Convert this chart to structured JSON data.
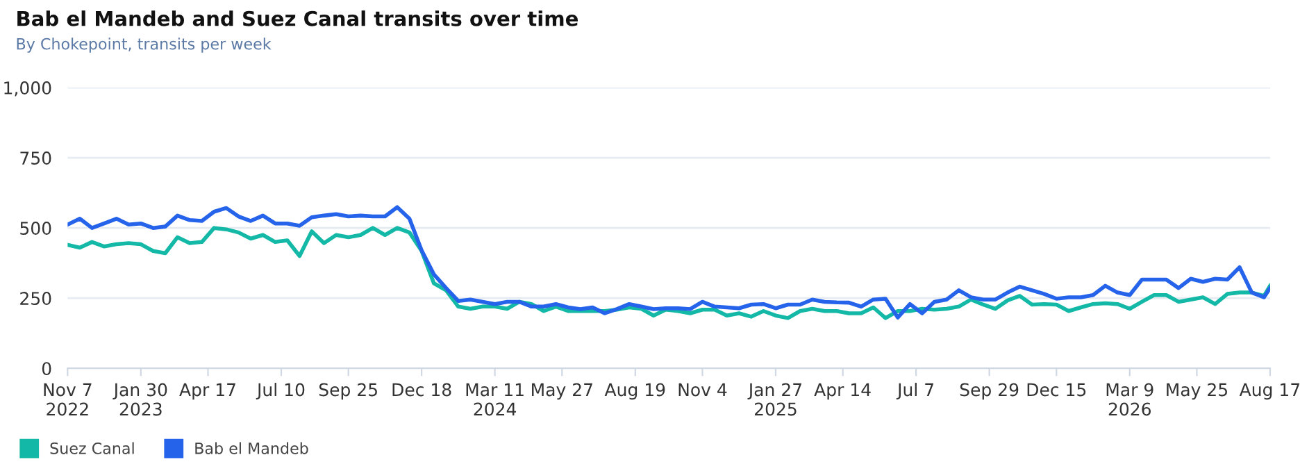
{
  "chart_data": {
    "type": "line",
    "title": "Bab el Mandeb and Suez Canal transits over time",
    "subtitle": "By Chokepoint, transits per week",
    "x": [
      "2022-11-07",
      "2022-11-21",
      "2022-12-05",
      "2022-12-19",
      "2023-01-02",
      "2023-01-16",
      "2023-01-30",
      "2023-02-13",
      "2023-02-27",
      "2023-03-13",
      "2023-03-27",
      "2023-04-10",
      "2023-04-24",
      "2023-05-08",
      "2023-05-22",
      "2023-06-05",
      "2023-06-19",
      "2023-07-03",
      "2023-07-17",
      "2023-07-31",
      "2023-08-14",
      "2023-08-28",
      "2023-09-11",
      "2023-09-25",
      "2023-10-09",
      "2023-10-23",
      "2023-11-06",
      "2023-11-20",
      "2023-12-04",
      "2023-12-18",
      "2024-01-01",
      "2024-01-15",
      "2024-01-29",
      "2024-02-12",
      "2024-02-26",
      "2024-03-11",
      "2024-03-25",
      "2024-04-08",
      "2024-04-22",
      "2024-05-06",
      "2024-05-20",
      "2024-06-03",
      "2024-06-17",
      "2024-07-01",
      "2024-07-15",
      "2024-07-29",
      "2024-08-12",
      "2024-08-26",
      "2024-09-09",
      "2024-09-23",
      "2024-10-07",
      "2024-10-21",
      "2024-11-04",
      "2024-11-18",
      "2024-12-02",
      "2024-12-16",
      "2024-12-30",
      "2025-01-13",
      "2025-01-27",
      "2025-02-10",
      "2025-02-24",
      "2025-03-10",
      "2025-03-24",
      "2025-04-07",
      "2025-04-21",
      "2025-05-05",
      "2025-05-19",
      "2025-06-02",
      "2025-06-16",
      "2025-06-30",
      "2025-07-14",
      "2025-07-28",
      "2025-08-11",
      "2025-08-25",
      "2025-09-08",
      "2025-09-22",
      "2025-10-06",
      "2025-10-20",
      "2025-11-03",
      "2025-11-17",
      "2025-12-01",
      "2025-12-15",
      "2025-12-29",
      "2026-01-12",
      "2026-01-26",
      "2026-02-09",
      "2026-02-23",
      "2026-03-09",
      "2026-03-23",
      "2026-04-06",
      "2026-04-20",
      "2026-05-04",
      "2026-05-18",
      "2026-06-01",
      "2026-06-15",
      "2026-06-29",
      "2026-07-13",
      "2026-07-27",
      "2026-08-10",
      "2026-08-17"
    ],
    "series": [
      {
        "name": "Suez Canal",
        "color": "#14b8a6",
        "values": [
          440,
          430,
          450,
          434,
          442,
          446,
          442,
          418,
          410,
          467,
          446,
          450,
          500,
          495,
          484,
          462,
          475,
          450,
          456,
          400,
          488,
          446,
          475,
          467,
          475,
          500,
          475,
          500,
          484,
          418,
          303,
          278,
          220,
          212,
          220,
          220,
          212,
          237,
          229,
          204,
          220,
          204,
          204,
          204,
          204,
          209,
          217,
          212,
          188,
          209,
          204,
          196,
          209,
          209,
          188,
          196,
          184,
          204,
          188,
          179,
          204,
          212,
          204,
          204,
          196,
          196,
          217,
          179,
          204,
          204,
          212,
          209,
          212,
          220,
          245,
          227,
          212,
          242,
          258,
          227,
          229,
          227,
          204,
          217,
          229,
          232,
          229,
          212,
          237,
          261,
          261,
          237,
          245,
          253,
          229,
          265,
          270,
          270,
          258,
          294
        ]
      },
      {
        "name": "Bab el Mandeb",
        "color": "#2563eb",
        "values": [
          512,
          533,
          500,
          516,
          533,
          512,
          516,
          500,
          505,
          544,
          528,
          525,
          558,
          571,
          541,
          525,
          544,
          516,
          516,
          508,
          538,
          544,
          549,
          541,
          544,
          541,
          541,
          574,
          533,
          420,
          335,
          286,
          240,
          245,
          237,
          229,
          237,
          237,
          220,
          220,
          229,
          217,
          211,
          217,
          196,
          211,
          229,
          220,
          211,
          214,
          214,
          211,
          237,
          220,
          217,
          214,
          227,
          229,
          214,
          227,
          227,
          245,
          237,
          235,
          234,
          220,
          245,
          248,
          181,
          229,
          196,
          237,
          245,
          278,
          253,
          245,
          245,
          270,
          291,
          278,
          265,
          248,
          253,
          253,
          261,
          294,
          270,
          261,
          316,
          316,
          316,
          286,
          319,
          308,
          319,
          316,
          360,
          270,
          253,
          286
        ]
      }
    ],
    "xlim": [
      "2022-11-07",
      "2026-08-17"
    ],
    "xticks": [
      {
        "value": "2022-11-07",
        "label": "Nov 7\n2022"
      },
      {
        "value": "2023-01-30",
        "label": "Jan 30\n2023"
      },
      {
        "value": "2023-04-17",
        "label": "Apr 17"
      },
      {
        "value": "2023-07-10",
        "label": "Jul 10"
      },
      {
        "value": "2023-09-25",
        "label": "Sep 25"
      },
      {
        "value": "2023-12-18",
        "label": "Dec 18"
      },
      {
        "value": "2024-03-11",
        "label": "Mar 11\n2024"
      },
      {
        "value": "2024-05-27",
        "label": "May 27"
      },
      {
        "value": "2024-08-19",
        "label": "Aug 19"
      },
      {
        "value": "2024-11-04",
        "label": "Nov 4"
      },
      {
        "value": "2025-01-27",
        "label": "Jan 27\n2025"
      },
      {
        "value": "2025-04-14",
        "label": "Apr 14"
      },
      {
        "value": "2025-07-07",
        "label": "Jul 7"
      },
      {
        "value": "2025-09-29",
        "label": "Sep 29"
      },
      {
        "value": "2025-12-15",
        "label": "Dec 15"
      },
      {
        "value": "2026-03-09",
        "label": "Mar 9\n2026"
      },
      {
        "value": "2026-05-25",
        "label": "May 25"
      },
      {
        "value": "2026-08-17",
        "label": "Aug 17"
      }
    ],
    "ylim": [
      0,
      1000
    ],
    "yticks": [
      0,
      250,
      500,
      750,
      {
        "value": 1000,
        "label": "1,000"
      }
    ],
    "grid": "y",
    "legend": "bottom left",
    "marker": "none",
    "line_style": "solid"
  }
}
